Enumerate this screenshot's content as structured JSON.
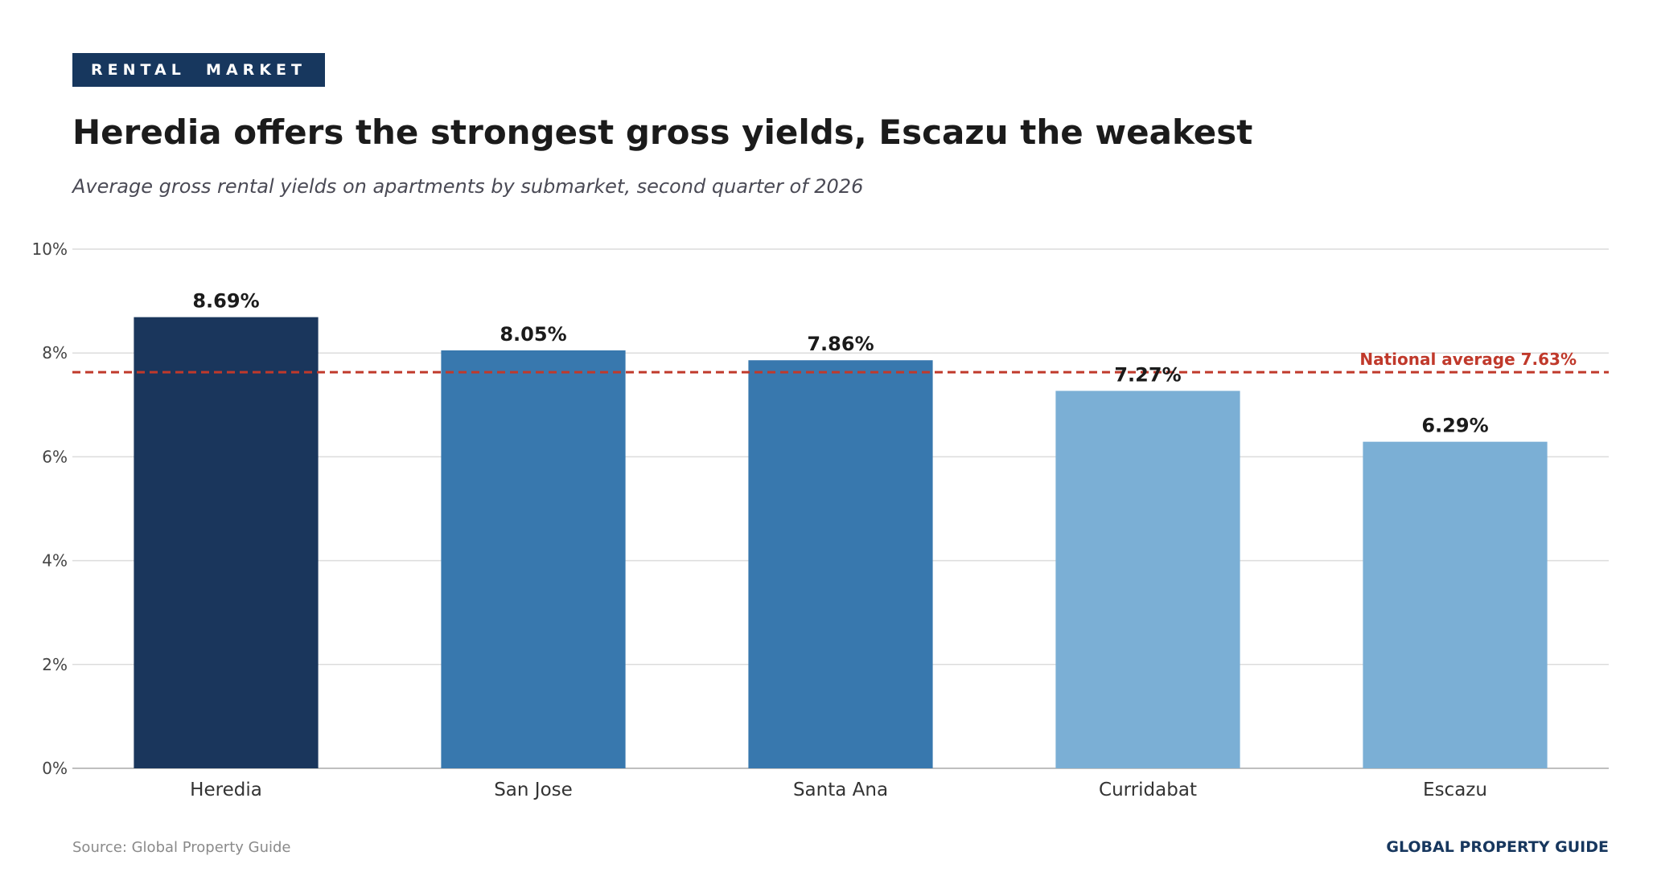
{
  "header": {
    "badge": "RENTAL  MARKET",
    "title": "Heredia offers the strongest gross yields, Escazu the weakest",
    "subtitle": "Average gross rental yields on apartments by submarket, second quarter of 2026"
  },
  "footer": {
    "source": "Source: Global Property Guide",
    "brand": "GLOBAL PROPERTY GUIDE"
  },
  "colors": {
    "badge": "#17375e",
    "bar_dark": "#1a365c",
    "bar_mid": "#3878ae",
    "bar_light": "#7bafd5",
    "reference_line": "#c0392b",
    "grid": "#dcdcdc"
  },
  "chart_data": {
    "type": "bar",
    "title": "Heredia offers the strongest gross yields, Escazu the weakest",
    "subtitle": "Average gross rental yields on apartments by submarket, second quarter of 2026",
    "xlabel": "",
    "ylabel": "",
    "categories": [
      "Heredia",
      "San Jose",
      "Santa Ana",
      "Curridabat",
      "Escazu"
    ],
    "values": [
      8.69,
      8.05,
      7.86,
      7.27,
      6.29
    ],
    "data_labels": [
      "8.69%",
      "8.05%",
      "7.86%",
      "7.27%",
      "6.29%"
    ],
    "bar_colors": [
      "#1a365c",
      "#3878ae",
      "#3878ae",
      "#7bafd5",
      "#7bafd5"
    ],
    "ylim": [
      0,
      10
    ],
    "yticks": [
      0,
      2,
      4,
      6,
      8,
      10
    ],
    "ytick_labels": [
      "0%",
      "2%",
      "4%",
      "6%",
      "8%",
      "10%"
    ],
    "grid": true,
    "reference_line": {
      "value": 7.63,
      "label": "National average 7.63%",
      "style": "dashed"
    }
  }
}
